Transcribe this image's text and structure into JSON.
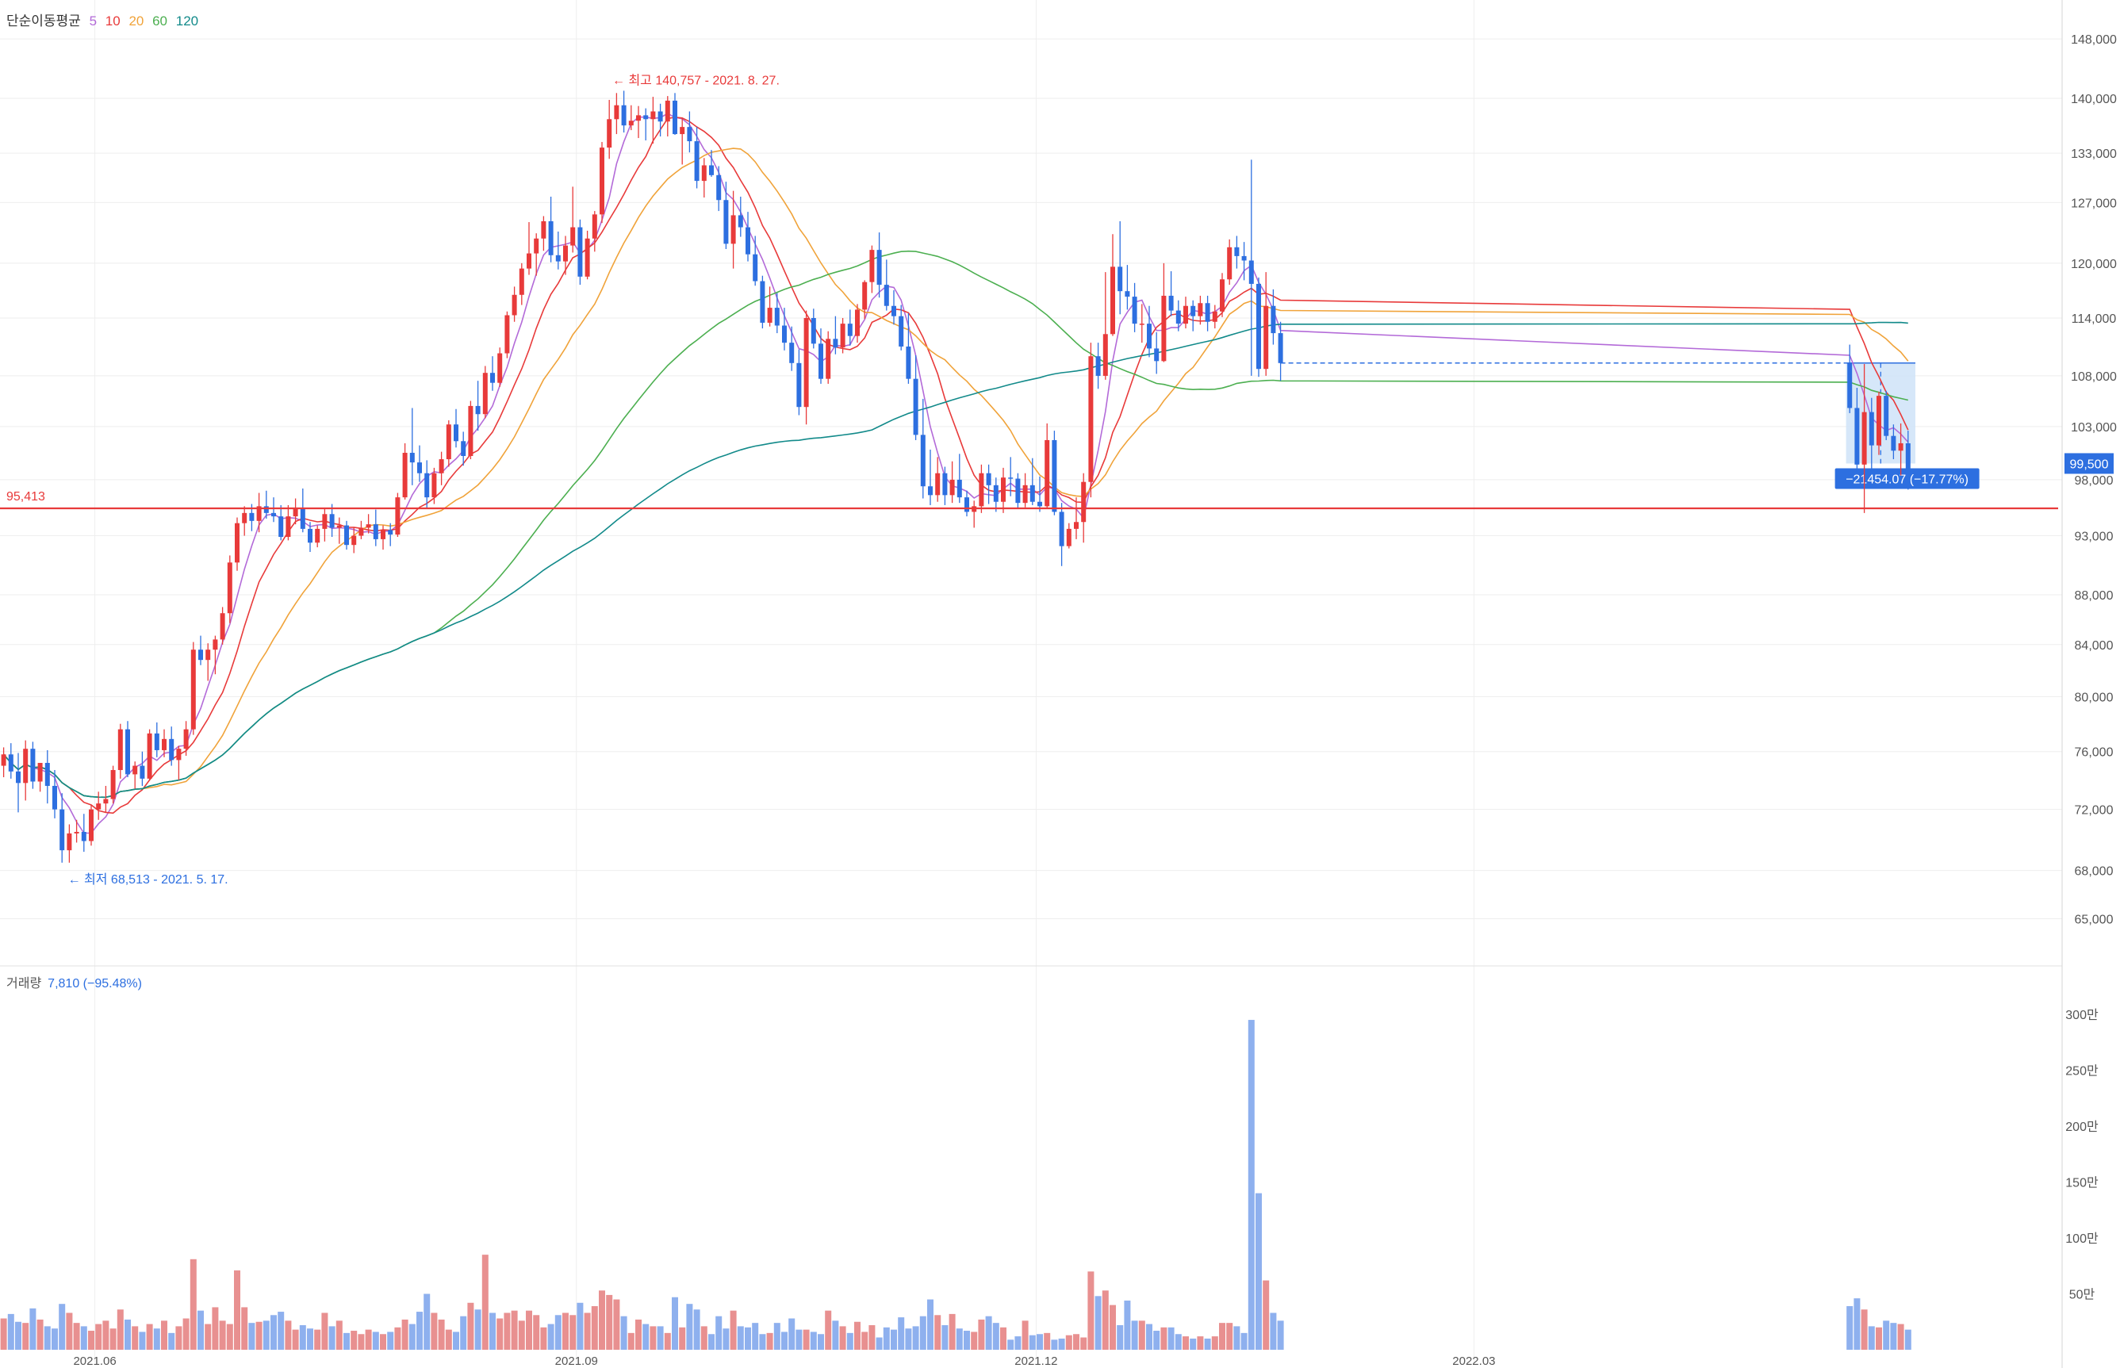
{
  "legend": {
    "title": "단순이동평균",
    "periods": [
      {
        "label": "5",
        "color": "#b36ad8"
      },
      {
        "label": "10",
        "color": "#e83a3a"
      },
      {
        "label": "20",
        "color": "#f0a33a"
      },
      {
        "label": "60",
        "color": "#4caf50"
      },
      {
        "label": "120",
        "color": "#128a8a"
      }
    ]
  },
  "volume_panel": {
    "title": "거래량",
    "value": "7,810 (−95.48%)"
  },
  "colors": {
    "up": "#e83a3a",
    "down": "#2d6fe0",
    "up_vol": "#e89090",
    "down_vol": "#8eb0ee",
    "axis_text": "#555555",
    "grid": "#eeeeee",
    "measure_box": "#cfe3f8"
  },
  "annotations": {
    "high": "← 최고 140,757 - 2021. 8. 27.",
    "low": "← 최저 68,513 - 2021. 5. 17.",
    "support_line_value": 95413,
    "support_line_label": "95,413",
    "measure_label": "−21454.07 (−17.77%)",
    "current_price": 99500,
    "current_price_label": "99,500"
  },
  "chart_data": {
    "type": "candlestick",
    "price_axis": {
      "ticks": [
        65000,
        68000,
        72000,
        76000,
        80000,
        84000,
        88000,
        93000,
        98000,
        103000,
        108000,
        114000,
        120000,
        127000,
        133000,
        140000,
        148000
      ],
      "tick_labels": [
        "65,000",
        "68,000",
        "72,000",
        "76,000",
        "80,000",
        "84,000",
        "88,000",
        "93,000",
        "98,000",
        "103,000",
        "108,000",
        "114,000",
        "120,000",
        "127,000",
        "133,000",
        "140,000",
        "148,000"
      ],
      "scale": "log",
      "range": [
        63500,
        150000
      ]
    },
    "volume_axis": {
      "ticks": [
        50,
        100,
        150,
        200,
        250,
        300
      ],
      "tick_labels": [
        "50만",
        "100만",
        "150만",
        "200만",
        "250만",
        "300만"
      ],
      "unit": "만"
    },
    "x_ticks": [
      {
        "label": "2021.06",
        "index": 13
      },
      {
        "label": "2021.09",
        "index": 79
      },
      {
        "label": "2021.12",
        "index": 142
      },
      {
        "label": "2022.03",
        "index": 202
      }
    ],
    "candles": [
      [
        75000,
        76300,
        74200,
        75800,
        28
      ],
      [
        75800,
        76600,
        74100,
        74600,
        32
      ],
      [
        74600,
        75900,
        71800,
        73800,
        25
      ],
      [
        73800,
        76800,
        72600,
        76200,
        24
      ],
      [
        76200,
        76700,
        73400,
        73900,
        37
      ],
      [
        73900,
        75200,
        73200,
        75200,
        27
      ],
      [
        75200,
        76100,
        72400,
        73600,
        21
      ],
      [
        73600,
        74700,
        71400,
        72000,
        19
      ],
      [
        72000,
        73100,
        68500,
        69300,
        41
      ],
      [
        69300,
        71000,
        68500,
        70400,
        33
      ],
      [
        70400,
        71300,
        69800,
        70500,
        24
      ],
      [
        70500,
        71700,
        69200,
        69900,
        21
      ],
      [
        69900,
        72300,
        69600,
        72000,
        17
      ],
      [
        72000,
        73200,
        71300,
        72400,
        23
      ],
      [
        72400,
        73600,
        71800,
        72700,
        26
      ],
      [
        72700,
        75000,
        72400,
        74700,
        19
      ],
      [
        74700,
        78000,
        74100,
        77600,
        36
      ],
      [
        77600,
        78200,
        74200,
        74400,
        27
      ],
      [
        74400,
        75300,
        73400,
        75000,
        21
      ],
      [
        75000,
        76000,
        73600,
        74100,
        16
      ],
      [
        74100,
        77600,
        74000,
        77300,
        23
      ],
      [
        77300,
        78100,
        75600,
        76100,
        19
      ],
      [
        76100,
        77600,
        75600,
        76900,
        26
      ],
      [
        76900,
        77800,
        75000,
        75400,
        15
      ],
      [
        75400,
        76400,
        74000,
        76200,
        21
      ],
      [
        76200,
        78200,
        75700,
        77600,
        28
      ],
      [
        77600,
        84200,
        77200,
        83600,
        81
      ],
      [
        83600,
        84700,
        82400,
        82800,
        35
      ],
      [
        82800,
        84100,
        81200,
        83600,
        23
      ],
      [
        83600,
        84700,
        81700,
        84400,
        38
      ],
      [
        84400,
        87000,
        84000,
        86500,
        26
      ],
      [
        86500,
        91300,
        85700,
        90700,
        23
      ],
      [
        90700,
        94600,
        90000,
        94100,
        71
      ],
      [
        94100,
        95600,
        93000,
        95000,
        38
      ],
      [
        95000,
        95800,
        93400,
        94300,
        24
      ],
      [
        94300,
        96800,
        93300,
        95600,
        25
      ],
      [
        95600,
        97000,
        94500,
        95000,
        26
      ],
      [
        95000,
        96400,
        94200,
        94700,
        31
      ],
      [
        94700,
        95700,
        92600,
        92900,
        34
      ],
      [
        92900,
        95700,
        92600,
        94700,
        26
      ],
      [
        94700,
        96300,
        94000,
        95400,
        18
      ],
      [
        95400,
        97200,
        93300,
        93600,
        22
      ],
      [
        93600,
        94200,
        91600,
        92400,
        19
      ],
      [
        92400,
        93900,
        92000,
        93600,
        18
      ],
      [
        93600,
        95400,
        92500,
        94900,
        33
      ],
      [
        94900,
        95800,
        92900,
        93700,
        21
      ],
      [
        93700,
        94600,
        92300,
        93900,
        26
      ],
      [
        93900,
        94300,
        91800,
        92200,
        15
      ],
      [
        92200,
        93700,
        91500,
        93000,
        17
      ],
      [
        93000,
        94300,
        92700,
        93700,
        14
      ],
      [
        93700,
        94900,
        93200,
        94000,
        18
      ],
      [
        94000,
        95300,
        92100,
        92700,
        16
      ],
      [
        92700,
        93900,
        91800,
        93500,
        14
      ],
      [
        93500,
        94100,
        92100,
        93100,
        16
      ],
      [
        93100,
        96800,
        92900,
        96400,
        20
      ],
      [
        96400,
        101400,
        96200,
        100500,
        27
      ],
      [
        100500,
        104800,
        97500,
        99600,
        23
      ],
      [
        99600,
        101200,
        97800,
        98600,
        34
      ],
      [
        98600,
        99800,
        95400,
        96400,
        50
      ],
      [
        96400,
        99100,
        95800,
        98600,
        33
      ],
      [
        98600,
        100600,
        97500,
        99900,
        27
      ],
      [
        99900,
        103600,
        99200,
        103200,
        18
      ],
      [
        103200,
        104700,
        101000,
        101600,
        16
      ],
      [
        101600,
        102500,
        99300,
        100200,
        30
      ],
      [
        100200,
        105500,
        99900,
        105000,
        42
      ],
      [
        105000,
        107500,
        102600,
        104200,
        36
      ],
      [
        104200,
        109000,
        103800,
        108300,
        85
      ],
      [
        108300,
        110000,
        106500,
        107300,
        33
      ],
      [
        107300,
        110900,
        106900,
        110300,
        28
      ],
      [
        110300,
        114700,
        109800,
        114300,
        33
      ],
      [
        114300,
        117400,
        113600,
        116500,
        35
      ],
      [
        116500,
        120000,
        115400,
        119400,
        26
      ],
      [
        119400,
        124700,
        118700,
        121100,
        35
      ],
      [
        121100,
        123400,
        118600,
        122800,
        31
      ],
      [
        122800,
        125400,
        121400,
        124800,
        20
      ],
      [
        124800,
        127700,
        120100,
        120900,
        23
      ],
      [
        120900,
        123600,
        119300,
        120200,
        31
      ],
      [
        120200,
        123100,
        118700,
        122000,
        33
      ],
      [
        122000,
        128900,
        121200,
        124100,
        31
      ],
      [
        124100,
        125000,
        117600,
        118500,
        42
      ],
      [
        118500,
        123700,
        118200,
        122800,
        33
      ],
      [
        122800,
        126000,
        121300,
        125600,
        39
      ],
      [
        125600,
        134400,
        124600,
        133700,
        53
      ],
      [
        133700,
        139800,
        132300,
        137300,
        49
      ],
      [
        137300,
        140700,
        135400,
        139100,
        45
      ],
      [
        139100,
        141000,
        135600,
        136500,
        30
      ],
      [
        136500,
        139100,
        135900,
        137100,
        15
      ],
      [
        137100,
        139000,
        134900,
        137800,
        27
      ],
      [
        137800,
        138700,
        134600,
        137300,
        23
      ],
      [
        137300,
        140200,
        134200,
        138300,
        21
      ],
      [
        138300,
        139300,
        135100,
        137000,
        21
      ],
      [
        137000,
        140300,
        135100,
        139700,
        15
      ],
      [
        139700,
        140700,
        135300,
        135400,
        47
      ],
      [
        135400,
        137400,
        131600,
        136300,
        20
      ],
      [
        136300,
        138300,
        133100,
        134500,
        41
      ],
      [
        134500,
        136300,
        128700,
        129600,
        36
      ],
      [
        129600,
        132400,
        127600,
        131500,
        21
      ],
      [
        131500,
        133400,
        130100,
        130300,
        14
      ],
      [
        130300,
        131400,
        126000,
        127300,
        30
      ],
      [
        127300,
        129500,
        121600,
        122200,
        19
      ],
      [
        122200,
        128400,
        119400,
        125500,
        35
      ],
      [
        125500,
        127700,
        123000,
        124100,
        21
      ],
      [
        124100,
        125900,
        120200,
        121000,
        20
      ],
      [
        121000,
        123100,
        117500,
        118000,
        24
      ],
      [
        118000,
        118600,
        112900,
        113500,
        14
      ],
      [
        113500,
        117400,
        113100,
        115100,
        15
      ],
      [
        115100,
        116700,
        112400,
        113200,
        24
      ],
      [
        113200,
        115100,
        110600,
        111400,
        16
      ],
      [
        111400,
        113100,
        108500,
        109300,
        28
      ],
      [
        109300,
        110700,
        104100,
        104900,
        18
      ],
      [
        104900,
        114800,
        103200,
        114000,
        18
      ],
      [
        114000,
        115000,
        110800,
        111300,
        16
      ],
      [
        111300,
        112900,
        107200,
        107700,
        14
      ],
      [
        107700,
        112600,
        107200,
        111800,
        35
      ],
      [
        111800,
        114200,
        110200,
        110900,
        26
      ],
      [
        110900,
        114000,
        110300,
        113400,
        21
      ],
      [
        113400,
        114900,
        111100,
        112100,
        15
      ],
      [
        112100,
        115500,
        111400,
        114900,
        25
      ],
      [
        114900,
        118100,
        113900,
        117900,
        16
      ],
      [
        117900,
        122000,
        116700,
        121500,
        22
      ],
      [
        121500,
        123500,
        116200,
        117600,
        11
      ],
      [
        117600,
        120400,
        114800,
        115300,
        20
      ],
      [
        115300,
        117000,
        113300,
        114200,
        18
      ],
      [
        114200,
        115400,
        110600,
        111000,
        29
      ],
      [
        111000,
        114500,
        107200,
        107700,
        19
      ],
      [
        107700,
        110100,
        101700,
        102200,
        21
      ],
      [
        102200,
        105700,
        96300,
        97400,
        30
      ],
      [
        97400,
        100800,
        95700,
        96600,
        45
      ],
      [
        96600,
        100100,
        96000,
        98600,
        31
      ],
      [
        98600,
        99200,
        95700,
        96600,
        22
      ],
      [
        96600,
        99700,
        95900,
        98000,
        32
      ],
      [
        98000,
        100400,
        95900,
        96400,
        19
      ],
      [
        96400,
        97000,
        94700,
        95100,
        17
      ],
      [
        95100,
        96100,
        93700,
        95600,
        16
      ],
      [
        95600,
        99400,
        95000,
        98600,
        27
      ],
      [
        98600,
        99400,
        95800,
        97500,
        30
      ],
      [
        97500,
        98200,
        95100,
        96000,
        24
      ],
      [
        96000,
        99100,
        95000,
        98200,
        20
      ],
      [
        98200,
        100100,
        96500,
        98100,
        9
      ],
      [
        98100,
        98600,
        95400,
        95900,
        12
      ],
      [
        95900,
        98600,
        95500,
        97500,
        26
      ],
      [
        97500,
        100000,
        95700,
        96000,
        13
      ],
      [
        96000,
        98300,
        95100,
        95600,
        14
      ],
      [
        95600,
        103300,
        95400,
        101700,
        15
      ],
      [
        101700,
        102600,
        94800,
        95100,
        9
      ],
      [
        95100,
        95900,
        90400,
        92100,
        10
      ],
      [
        92100,
        94100,
        91900,
        93600,
        13
      ],
      [
        93600,
        96400,
        92700,
        94200,
        14
      ],
      [
        94200,
        98600,
        92400,
        97800,
        11
      ],
      [
        97800,
        111400,
        96400,
        110000,
        70
      ],
      [
        110000,
        111400,
        106700,
        108000,
        48
      ],
      [
        108000,
        119000,
        107600,
        112300,
        53
      ],
      [
        112300,
        123300,
        112100,
        119600,
        40
      ],
      [
        119600,
        124800,
        114400,
        116900,
        22
      ],
      [
        116900,
        119800,
        114900,
        116300,
        44
      ],
      [
        116300,
        117800,
        112500,
        113400,
        26
      ],
      [
        113400,
        115500,
        111400,
        113400,
        26
      ],
      [
        113400,
        115300,
        109900,
        110800,
        23
      ],
      [
        110800,
        112500,
        108200,
        109500,
        17
      ],
      [
        109500,
        120000,
        109400,
        116400,
        20
      ],
      [
        116400,
        119100,
        114200,
        114800,
        20
      ],
      [
        114800,
        115900,
        112600,
        113400,
        14
      ],
      [
        113400,
        116300,
        112900,
        115300,
        12
      ],
      [
        115300,
        115900,
        112600,
        114200,
        10
      ],
      [
        114200,
        116400,
        113300,
        115600,
        12
      ],
      [
        115600,
        116400,
        112600,
        113600,
        10
      ],
      [
        113600,
        115400,
        112900,
        114700,
        12
      ],
      [
        114700,
        118900,
        114100,
        118200,
        24
      ],
      [
        118200,
        122700,
        117600,
        121800,
        24
      ],
      [
        121800,
        123100,
        119400,
        120800,
        21
      ],
      [
        120800,
        122400,
        118100,
        120300,
        15
      ],
      [
        120300,
        132200,
        108000,
        117700,
        295
      ],
      [
        117700,
        118400,
        107900,
        108700,
        140
      ],
      [
        108700,
        119000,
        108000,
        115300,
        62
      ],
      [
        115300,
        117100,
        111200,
        112400,
        33
      ],
      [
        112400,
        113600,
        107500,
        109300,
        26
      ],
      [
        109300,
        111200,
        104300,
        104800,
        39
      ],
      [
        104800,
        106800,
        98700,
        99400,
        46
      ],
      [
        99400,
        109200,
        95000,
        104400,
        36
      ],
      [
        104400,
        105800,
        98800,
        101200,
        21
      ],
      [
        101200,
        106400,
        100300,
        106000,
        20
      ],
      [
        106000,
        106500,
        101700,
        102100,
        26
      ],
      [
        102100,
        103200,
        99900,
        100700,
        24
      ],
      [
        100700,
        103300,
        98400,
        101400,
        23
      ],
      [
        101400,
        102600,
        97100,
        97400,
        18
      ]
    ],
    "gap_after_index": 175,
    "gap_slots": 77,
    "last_index": 184
  }
}
